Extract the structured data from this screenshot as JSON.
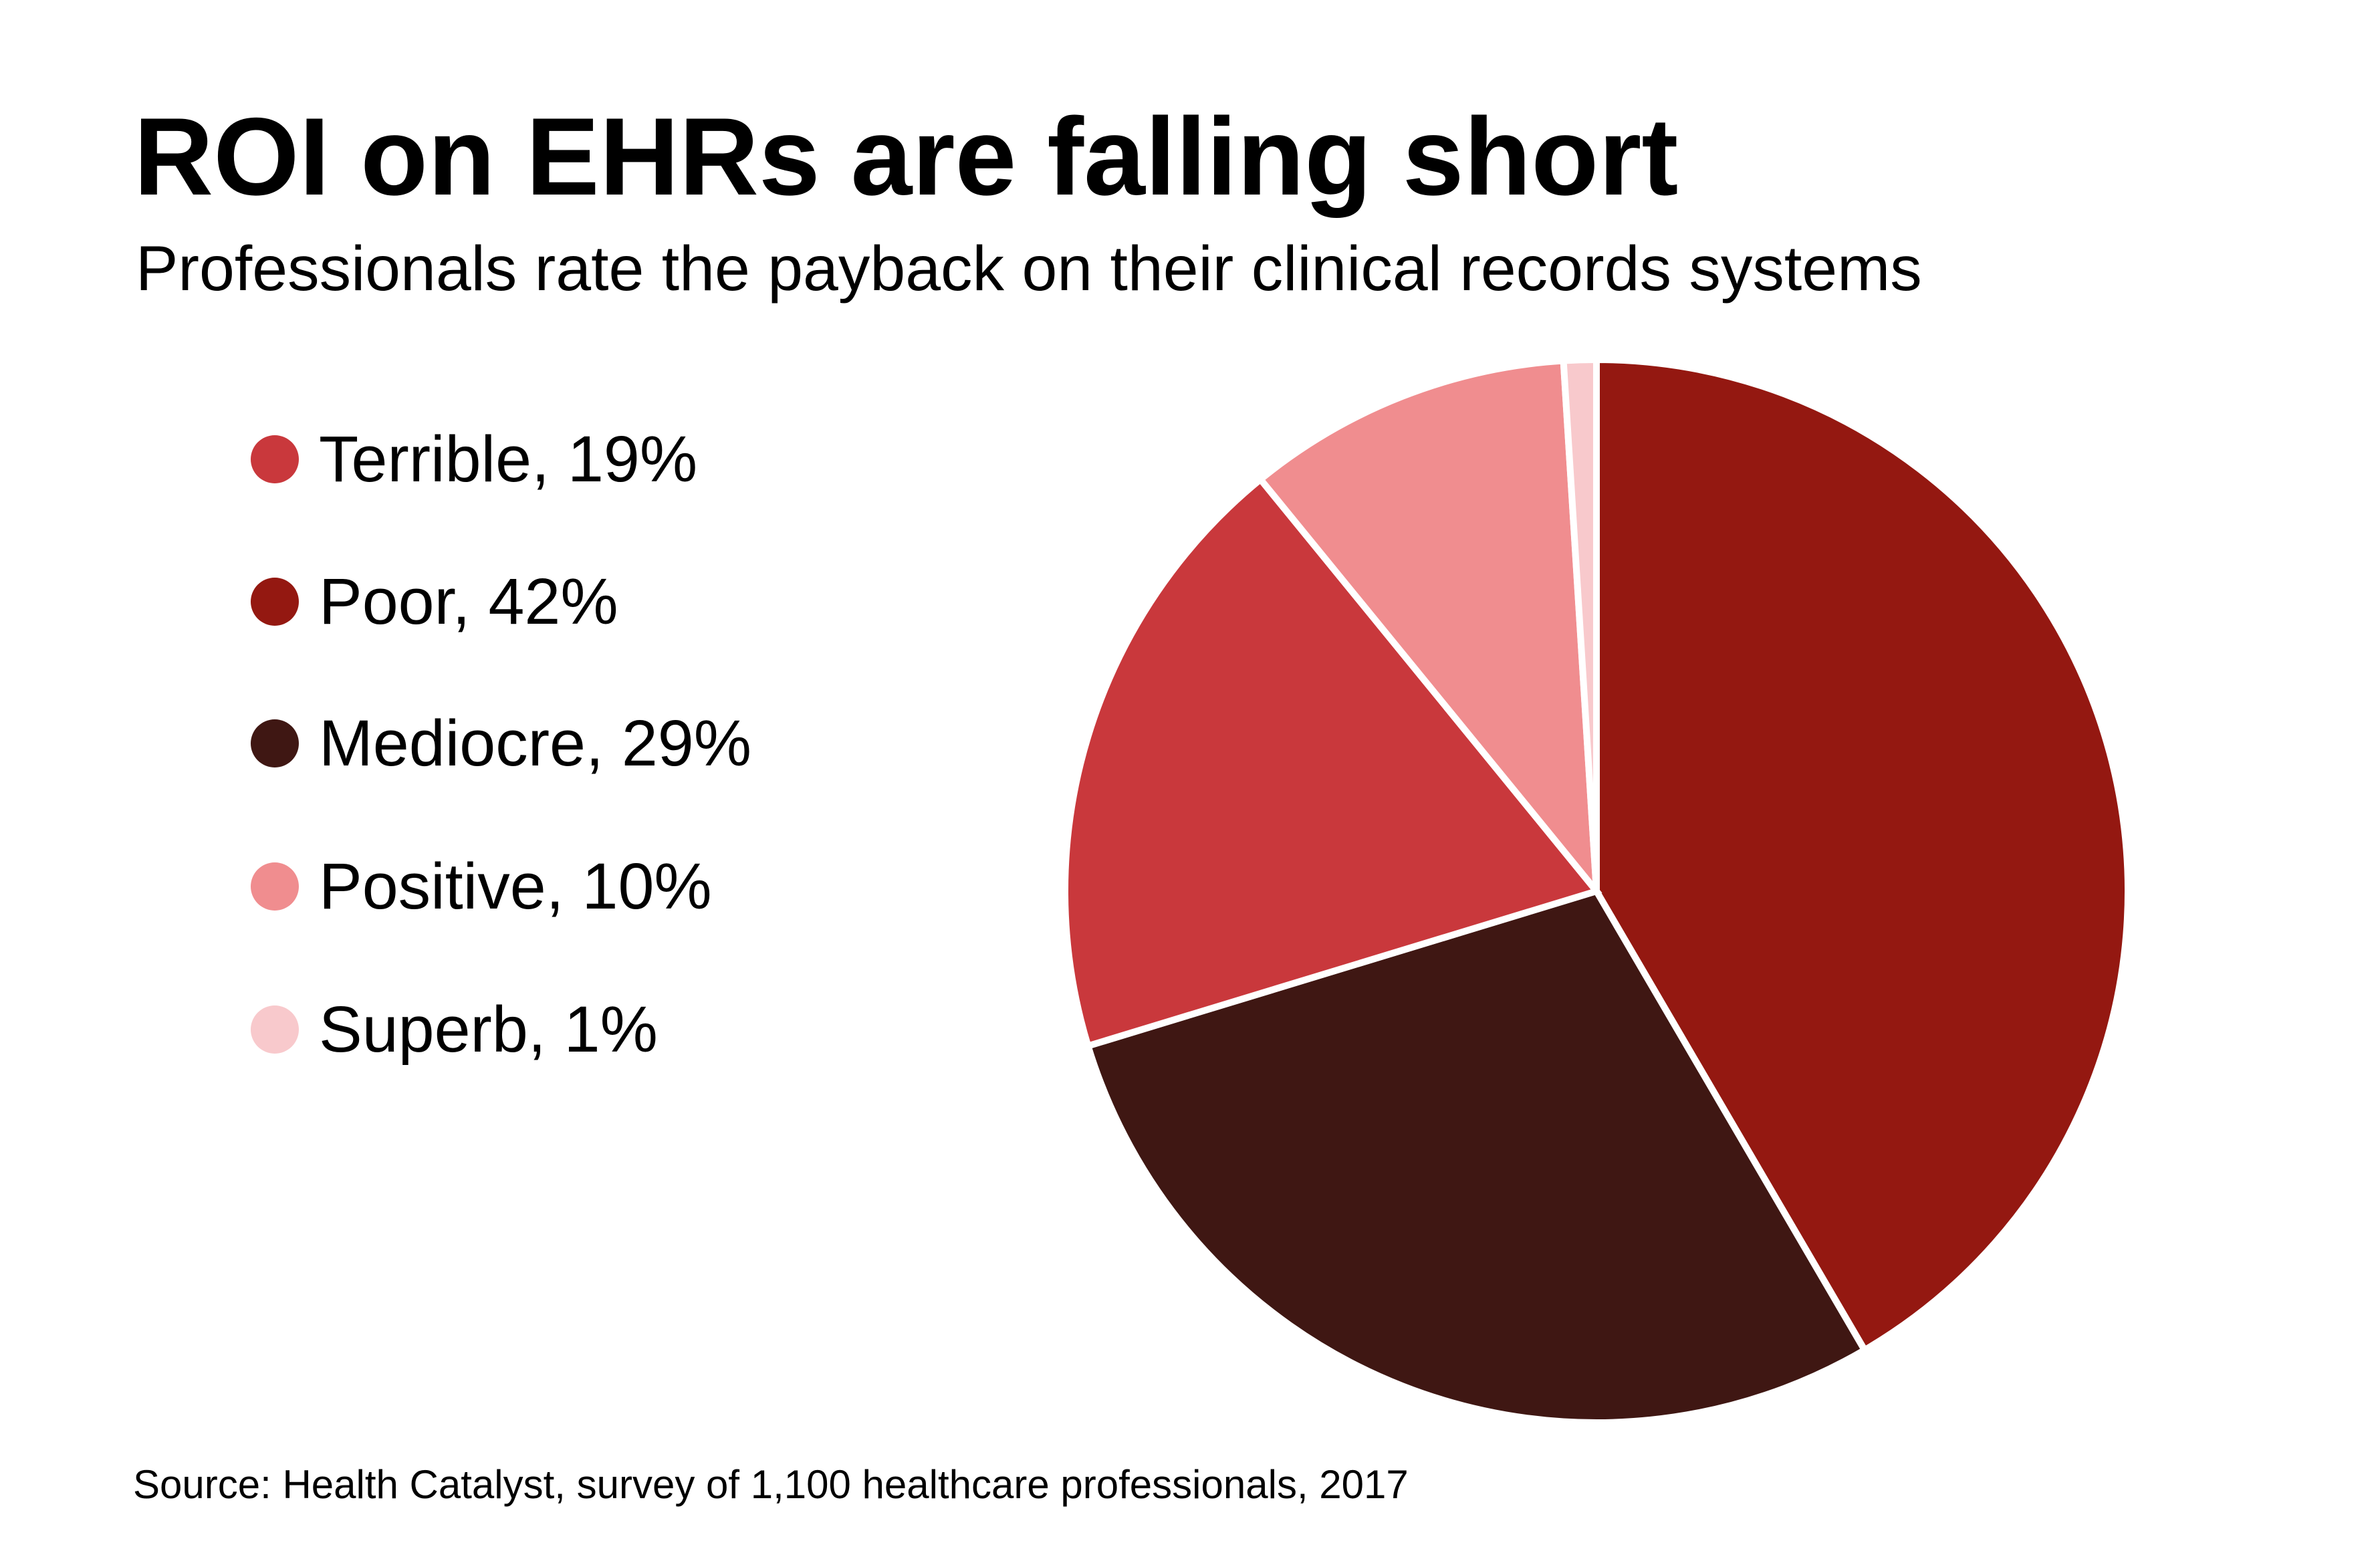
{
  "page": {
    "background_color": "#FFFFFF"
  },
  "header": {
    "title": "ROI on EHRs are falling short",
    "subtitle": "Professionals rate the payback on their clinical records systems"
  },
  "chart_data": {
    "type": "pie",
    "title": "ROI on EHRs are falling short",
    "subtitle": "Professionals rate the payback on their clinical records systems",
    "slices": [
      {
        "label": "Terrible",
        "value": 19,
        "unit": "%",
        "color": "#C9383C"
      },
      {
        "label": "Poor",
        "value": 42,
        "unit": "%",
        "color": "#941811"
      },
      {
        "label": "Mediocre",
        "value": 29,
        "unit": "%",
        "color": "#3F1713"
      },
      {
        "label": "Positive",
        "value": 10,
        "unit": "%",
        "color": "#F08D8F"
      },
      {
        "label": "Superb",
        "value": 1,
        "unit": "%",
        "color": "#F8C9CC"
      }
    ],
    "clockwise_order_from_top": [
      "Poor",
      "Mediocre",
      "Terrible",
      "Positive",
      "Superb"
    ],
    "slice_divider_color": "#FFFFFF",
    "legend_position": "left",
    "grid": "off"
  },
  "legend": {
    "items": [
      {
        "text": "Terrible, 19%",
        "color": "#C9383C"
      },
      {
        "text": "Poor, 42%",
        "color": "#941811"
      },
      {
        "text": "Mediocre, 29%",
        "color": "#3F1713"
      },
      {
        "text": "Positive, 10%",
        "color": "#F08D8F"
      },
      {
        "text": "Superb, 1%",
        "color": "#F8C9CC"
      }
    ]
  },
  "footer": {
    "source": "Source: Health Catalyst, survey of 1,100 healthcare professionals, 2017"
  }
}
